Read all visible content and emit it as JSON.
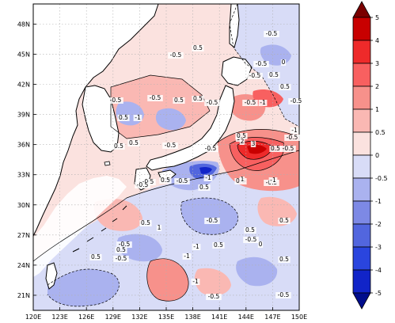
{
  "map": {
    "lat_labels": [
      "48N",
      "45N",
      "42N",
      "39N",
      "36N",
      "33N",
      "30N",
      "27N",
      "24N",
      "21N"
    ],
    "lon_labels": [
      "120E",
      "123E",
      "126E",
      "129E",
      "132E",
      "135E",
      "138E",
      "141E",
      "144E",
      "147E",
      "150E"
    ],
    "lon_range": [
      120,
      150
    ],
    "lat_range": [
      19.5,
      50
    ],
    "grid": true
  },
  "colorbar": {
    "labels": [
      "5",
      "4",
      "3",
      "2",
      "1",
      "0.5",
      "0",
      "-0.5",
      "-1",
      "-2",
      "-3",
      "-4",
      "-5"
    ],
    "colors": [
      "#7a0000",
      "#c80000",
      "#ee2a2a",
      "#f86060",
      "#f7918b",
      "#fab8b3",
      "#fbe2df",
      "#d8dcf7",
      "#aab2ef",
      "#7d89e5",
      "#5266de",
      "#2a45de",
      "#1124c8",
      "#000d8c"
    ]
  },
  "contour_labels": [
    {
      "t": "-0.5"
    },
    {
      "t": "0.5"
    },
    {
      "t": "-0.5"
    },
    {
      "t": "-0.5"
    },
    {
      "t": "0"
    },
    {
      "t": "0.5"
    },
    {
      "t": "-0.5"
    },
    {
      "t": "0.5"
    },
    {
      "t": "-0.5"
    },
    {
      "t": "0.5"
    },
    {
      "t": "-0.5"
    },
    {
      "t": "0.5"
    },
    {
      "t": "-0.5"
    },
    {
      "t": "-0.5"
    },
    {
      "t": "-1"
    },
    {
      "t": "-0.5"
    },
    {
      "t": "0.5"
    },
    {
      "t": "-1"
    },
    {
      "t": "1"
    },
    {
      "t": "-1"
    },
    {
      "t": "0.5"
    },
    {
      "t": "-0.5"
    },
    {
      "t": "-0.5"
    },
    {
      "t": "0.5"
    },
    {
      "t": "0.5"
    },
    {
      "t": "-0.5"
    },
    {
      "t": "-0.5"
    },
    {
      "t": "-0.5"
    },
    {
      "t": "0.5"
    },
    {
      "t": "-0.5"
    },
    {
      "t": "-1"
    },
    {
      "t": "0.5"
    },
    {
      "t": "-0.5"
    },
    {
      "t": "-0.5"
    },
    {
      "t": "1"
    },
    {
      "t": "0.5"
    },
    {
      "t": "0.5"
    },
    {
      "t": "1"
    },
    {
      "t": "-0.5"
    },
    {
      "t": "0.5"
    },
    {
      "t": "0.5"
    },
    {
      "t": "-0.5"
    },
    {
      "t": "0.5"
    },
    {
      "t": "-0.5"
    },
    {
      "t": "0"
    },
    {
      "t": "-1"
    },
    {
      "t": "0.5"
    },
    {
      "t": "0.5"
    },
    {
      "t": "-0.5"
    },
    {
      "t": "-1"
    },
    {
      "t": "0.5"
    },
    {
      "t": "-1"
    },
    {
      "t": "-0.5"
    },
    {
      "t": "-0.5"
    },
    {
      "t": "2"
    },
    {
      "t": "3"
    },
    {
      "t": "0.5"
    },
    {
      "t": "-1"
    }
  ]
}
